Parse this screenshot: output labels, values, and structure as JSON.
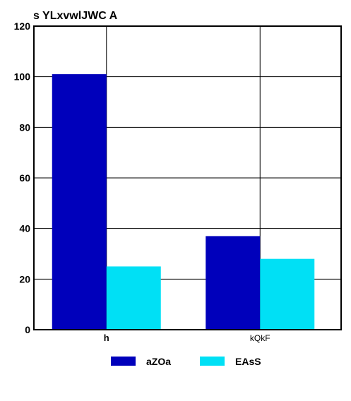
{
  "chart_data": {
    "type": "bar",
    "title": "s YLxvwlJWC A",
    "categories": [
      "h",
      "kQkF"
    ],
    "series": [
      {
        "name": "aZOa",
        "values": [
          101,
          37
        ],
        "color": "#0000bb"
      },
      {
        "name": "EAsS",
        "values": [
          25,
          28
        ],
        "color": "#00e0f5"
      }
    ],
    "xlabel": "",
    "ylabel": "",
    "ylim": [
      0,
      120
    ],
    "yticks": [
      0,
      20,
      40,
      60,
      80,
      100,
      120
    ],
    "grid": true,
    "legend_position": "bottom"
  }
}
